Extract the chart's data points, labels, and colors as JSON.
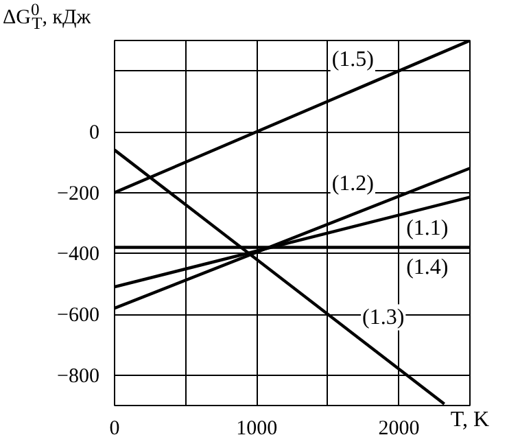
{
  "chart_data": {
    "type": "line",
    "ylabel": "ΔG$^{0}$$_{T}$, кДж",
    "xlabel": "T, K",
    "xlim": [
      0,
      2500
    ],
    "ylim": [
      -900,
      300
    ],
    "xticks": [
      0,
      {
        "value": 500,
        "label": null
      },
      1000,
      {
        "value": 1500,
        "label": null
      },
      2000,
      {
        "value": 2500,
        "label": null
      }
    ],
    "yticks": [
      -800,
      -600,
      -400,
      -200,
      0,
      {
        "value": 200,
        "label": null
      }
    ],
    "grid": true,
    "marker": "none",
    "line_style": "solid",
    "series": [
      {
        "name": "(1.5)",
        "color": "#000000",
        "x": [
          0,
          2500
        ],
        "values": [
          -200,
          300
        ]
      },
      {
        "name": "(1.1)",
        "color": "#000000",
        "x": [
          0,
          2500
        ],
        "values": [
          -510,
          -215
        ]
      },
      {
        "name": "(1.2)",
        "color": "#000000",
        "x": [
          0,
          2500
        ],
        "values": [
          -580,
          -120
        ]
      },
      {
        "name": "(1.4)",
        "color": "#000000",
        "x": [
          0,
          2500
        ],
        "values": [
          -380,
          -380
        ]
      },
      {
        "name": "(1.3)",
        "color": "#000000",
        "x": [
          0,
          2320
        ],
        "values": [
          -60,
          -895
        ]
      }
    ]
  }
}
